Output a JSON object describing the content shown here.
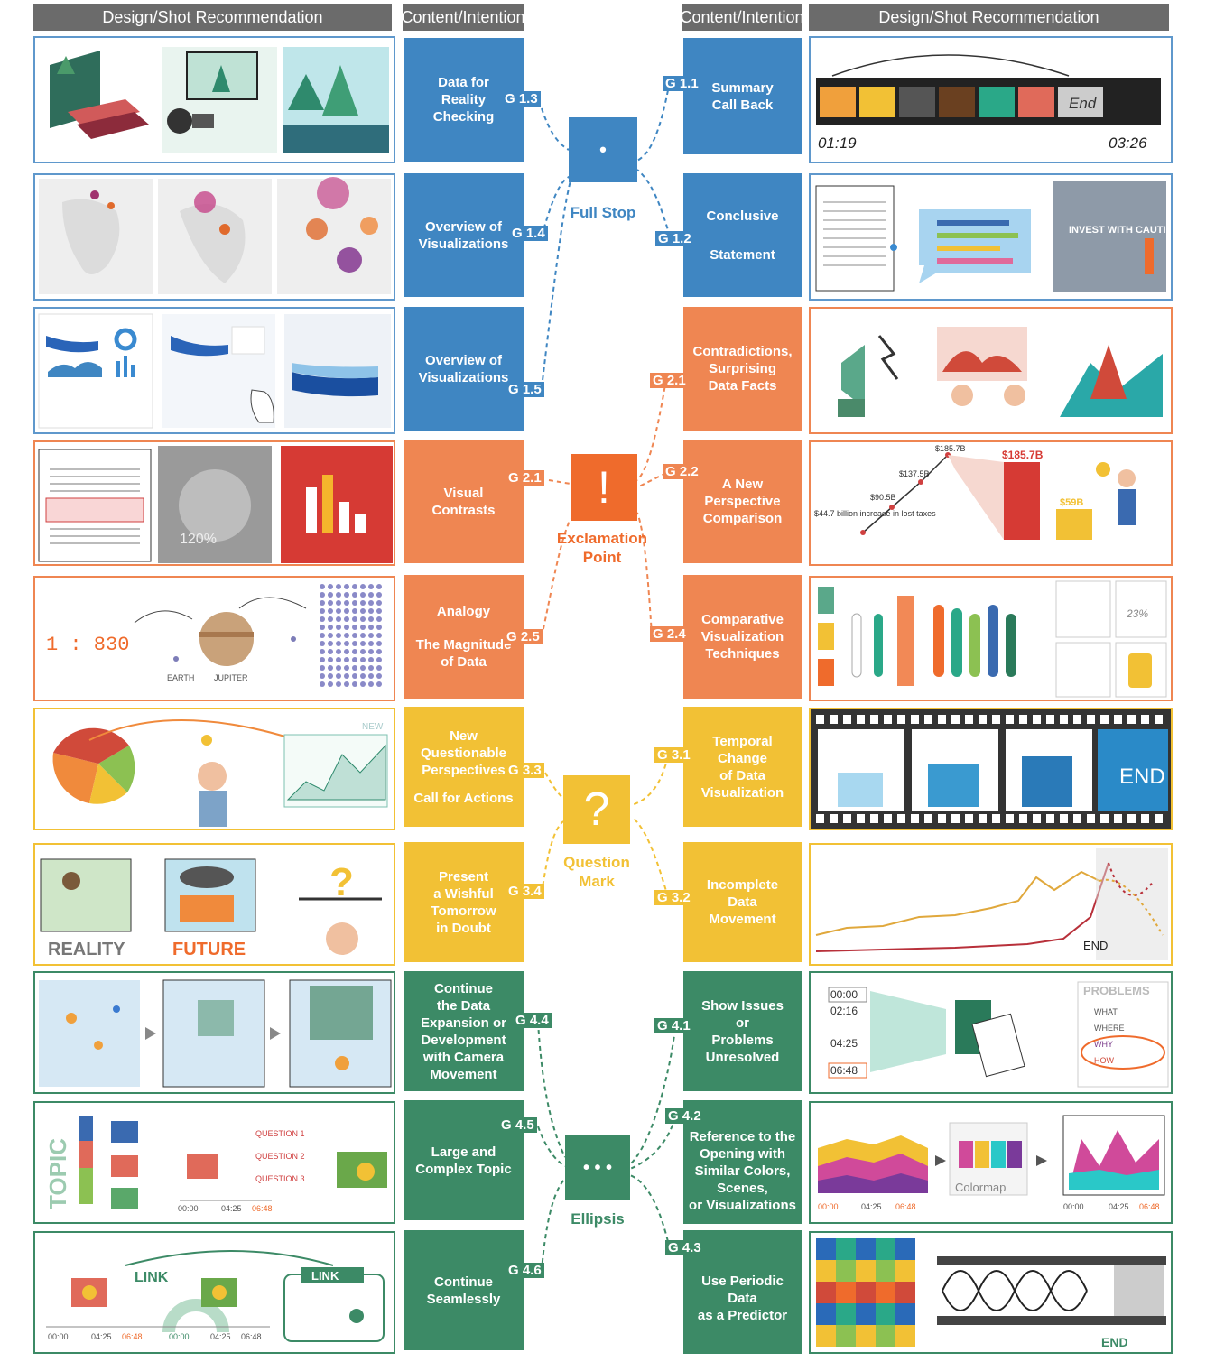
{
  "headers": {
    "left_design": "Design/Shot Recommendation",
    "left_content": "Content/Intention",
    "right_content": "Content/Intention",
    "right_design": "Design/Shot Recommendation"
  },
  "hubs": {
    "full_stop": {
      "symbol": "•",
      "label": "Full Stop",
      "color": "#3f86c2"
    },
    "exclamation": {
      "symbol": "!",
      "label": "Exclamation Point",
      "color": "#ef6b2c"
    },
    "question": {
      "symbol": "?",
      "label": "Question Mark",
      "color": "#f2c135"
    },
    "ellipsis": {
      "symbol": "• • •",
      "label": "Ellipsis",
      "color": "#3c8a66"
    }
  },
  "left": [
    {
      "lines": [
        "Data for",
        "Reality",
        "Checking"
      ],
      "tag": "G 1.3"
    },
    {
      "lines": [
        "Overview of",
        "Visualizations"
      ],
      "tag": "G 1.4"
    },
    {
      "lines": [
        "Overview of",
        "Visualizations"
      ],
      "tag": "G 1.5"
    },
    {
      "lines": [
        "Visual",
        "Contrasts"
      ],
      "tag": "G 2.1"
    },
    {
      "lines": [
        "Analogy",
        "",
        "The Magnitude",
        "of Data"
      ],
      "tag": "G 2.5"
    },
    {
      "lines": [
        "New",
        "Questionable",
        "Perspectives",
        "",
        "Call for Actions"
      ],
      "tag": "G 3.3"
    },
    {
      "lines": [
        "Present",
        "a Wishful",
        "Tomorrow",
        "in Doubt"
      ],
      "tag": "G 3.4"
    },
    {
      "lines": [
        "Continue",
        "the Data",
        "Expansion or",
        "Development",
        "with Camera",
        "Movement"
      ],
      "tag": "G 4.4"
    },
    {
      "lines": [
        "Large and",
        "Complex Topic"
      ],
      "tag": "G 4.5"
    },
    {
      "lines": [
        "Continue",
        "Seamlessly"
      ],
      "tag": "G 4.6"
    }
  ],
  "right": [
    {
      "lines": [
        "Summary",
        "",
        "Call Back"
      ],
      "tag": "G 1.1"
    },
    {
      "lines": [
        "Conclusive",
        "",
        "Statement"
      ],
      "tag": "G 1.2"
    },
    {
      "lines": [
        "Contradictions,",
        "Surprising",
        "Data Facts"
      ],
      "tag": "G 2.1"
    },
    {
      "lines": [
        "A New",
        "Perspective",
        "Comparison"
      ],
      "tag": "G 2.2"
    },
    {
      "lines": [
        "Comparative",
        "Visualization",
        "Techniques"
      ],
      "tag": "G 2.4"
    },
    {
      "lines": [
        "Temporal",
        "Change",
        "of Data",
        "Visualization"
      ],
      "tag": "G 3.1"
    },
    {
      "lines": [
        "Incomplete",
        "Data",
        "Movement"
      ],
      "tag": "G 3.2"
    },
    {
      "lines": [
        "Show Issues",
        "or",
        "Problems",
        "Unresolved"
      ],
      "tag": "G 4.1"
    },
    {
      "lines": [
        "Reference to the",
        "Opening with",
        "Similar Colors,",
        "Scenes,",
        "or Visualizations"
      ],
      "tag": "G 4.2"
    },
    {
      "lines": [
        "Use Periodic",
        "Data",
        "as a Predictor"
      ],
      "tag": "G 4.3"
    }
  ],
  "thumb_text": {
    "film_start": "01:19",
    "film_end": "03:26",
    "film_end_label": "End",
    "invest": "INVEST WITH CAUTION",
    "ratio": "1 : 830",
    "earth": "EARTH",
    "jupiter": "JUPITER",
    "new_label": "NEW",
    "reality": "REALITY",
    "future": "FUTURE",
    "end_upper": "END",
    "end_label": "END",
    "pct": "23%",
    "percent120": "120%",
    "bar_values": {
      "v1": "$44.7 billion increase in lost taxes",
      "v2": "$90.5B",
      "v3": "$137.5B",
      "v4": "$185.7B",
      "big": "$185.7B",
      "small": "$59B"
    },
    "problems": "PROBLEMS",
    "problems_items": [
      "WHAT",
      "WHERE",
      "WHY",
      "HOW"
    ],
    "timeline_times": [
      "00:00",
      "02:16",
      "04:25",
      "06:48"
    ],
    "topic": "TOPIC",
    "questions": [
      "QUESTION 1",
      "QUESTION 2",
      "QUESTION 3"
    ],
    "t_a": "00:00",
    "t_b": "04:25",
    "t_c": "06:48",
    "colormap": "Colormap",
    "link": "LINK",
    "link2": "LINK"
  }
}
